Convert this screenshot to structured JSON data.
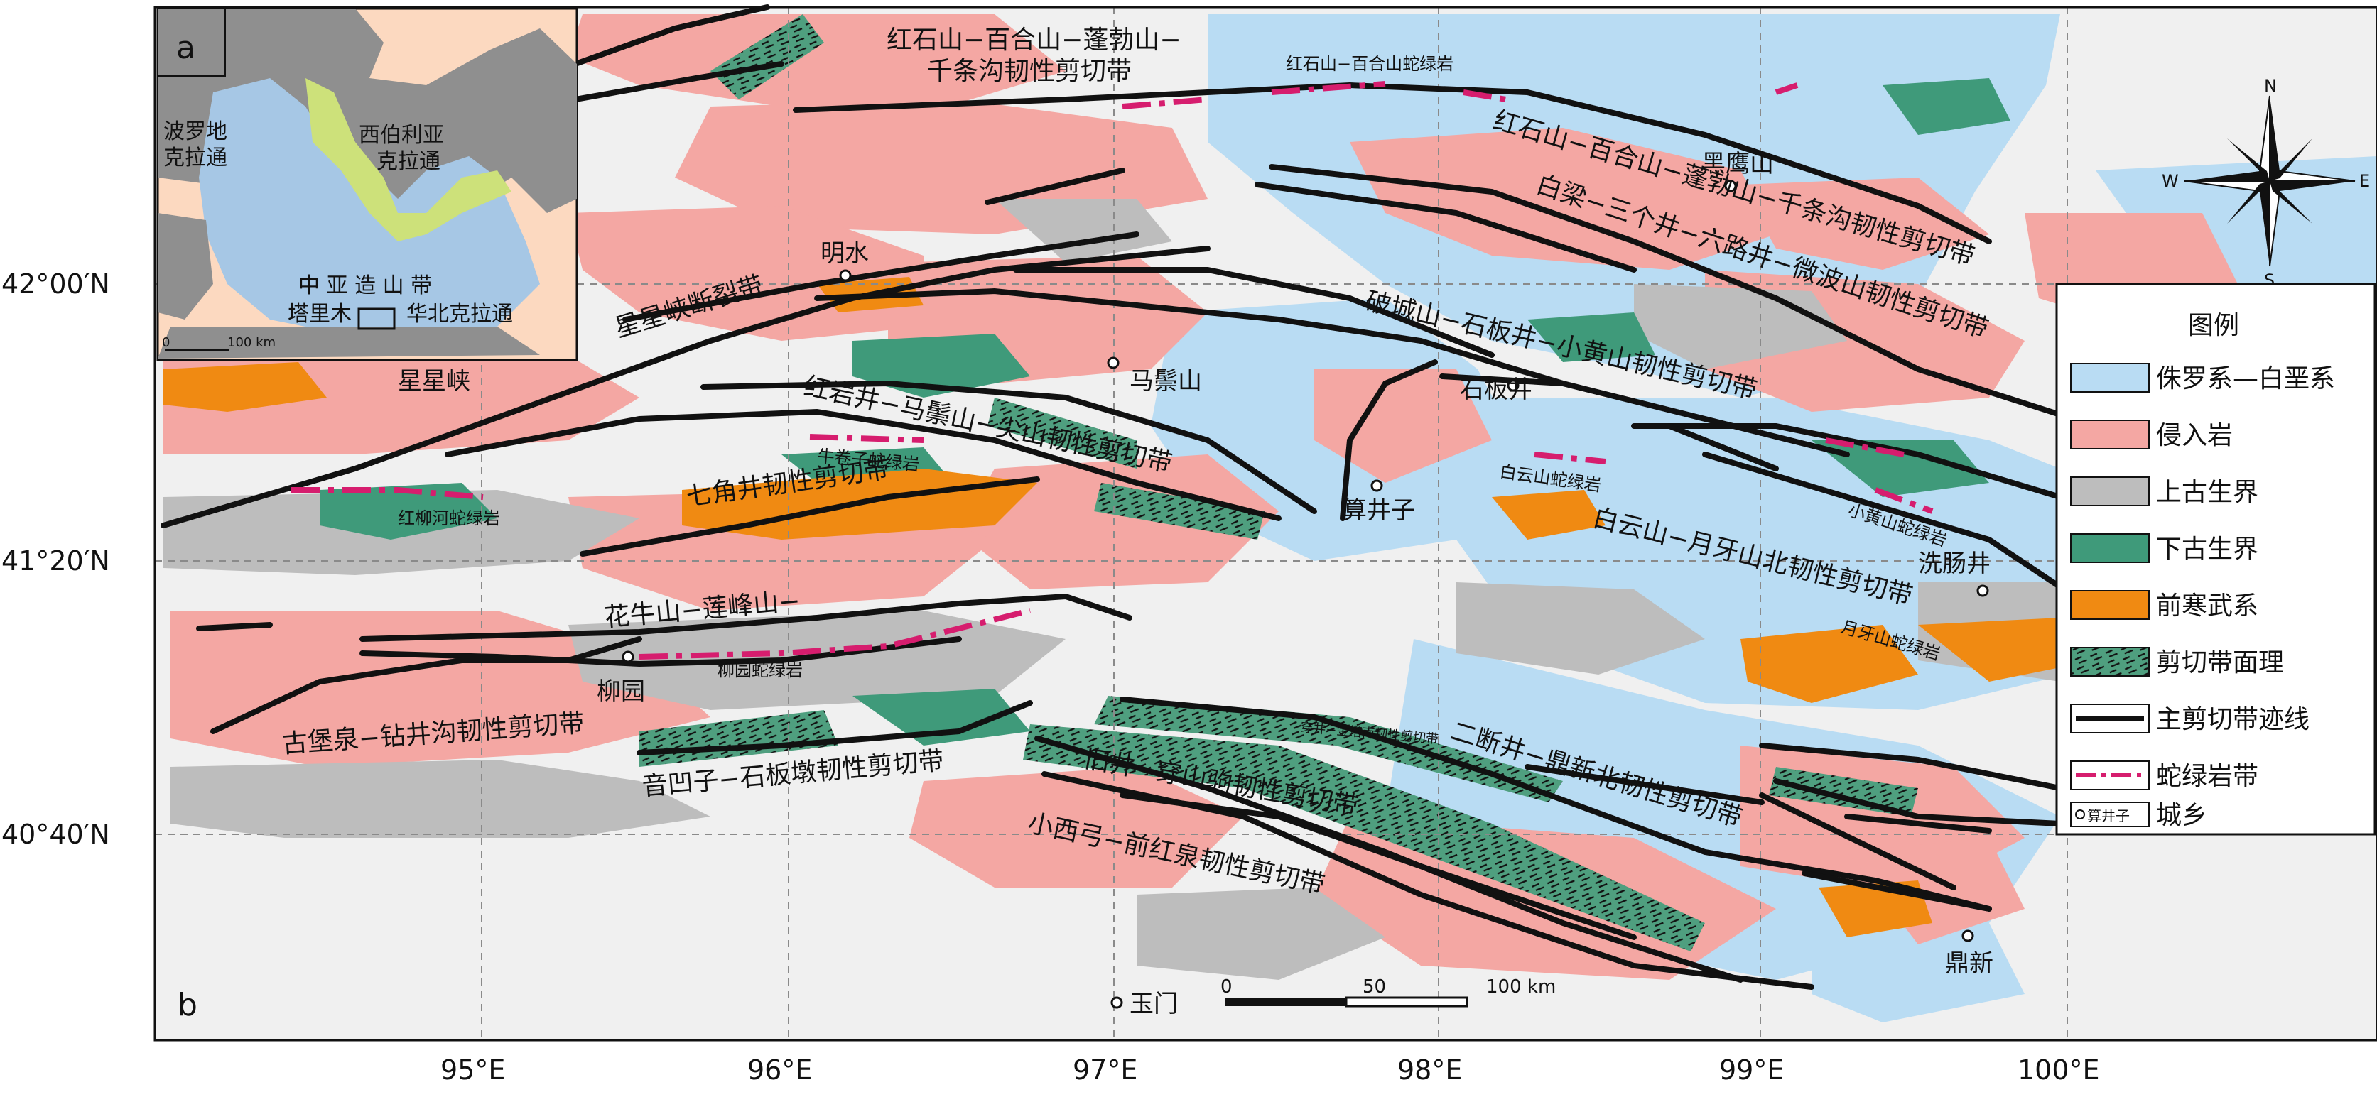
{
  "map": {
    "panel_label": "b",
    "axes": {
      "lon_labels": [
        "95°E",
        "96°E",
        "97°E",
        "98°E",
        "99°E",
        "100°E"
      ],
      "lat_labels": [
        "42°00′N",
        "41°20′N",
        "40°40′N"
      ]
    },
    "shear_zones": [
      "红石山−百合山−蓬勃山−",
      "千条沟韧性剪切带",
      "红石山−百合山−蓬勃山−千条沟韧性剪切带",
      "白梁−三个井−六路井−微波山韧性剪切带",
      "破城山−石板井−小黄山韧性剪切带",
      "红岩井−马鬃山−尖山韧性剪切带",
      "七角井韧性剪切带",
      "白云山−月牙山北韧性剪切带",
      "花牛山−莲峰山−",
      "古堡泉−钻井沟韧性剪切带",
      "音凹子−石板墩韧性剪切带",
      "二断井−鼎新北韧性剪切带",
      "旧井−穿山驹韧性剪切带",
      "小西弓−前红泉韧性剪切带",
      "星星峡断裂带"
    ],
    "ophiolites": [
      "红石山−百合山蛇绿岩",
      "牛卷子蛇绿岩",
      "红柳河蛇绿岩",
      "白云山蛇绿岩",
      "小黄山蛇绿岩",
      "月牙山蛇绿岩",
      "柳园蛇绿岩",
      "穿井−金塔南韧性剪切带"
    ],
    "towns": [
      "黑鹰山",
      "明水",
      "马鬃山",
      "石板井",
      "算井子",
      "星星峡",
      "洗肠井",
      "柳园",
      "玉门",
      "鼎新"
    ],
    "scale_bar": {
      "ticks": [
        "0",
        "50",
        "100 km"
      ]
    },
    "north_arrow": {
      "n": "N",
      "s": "S",
      "e": "E",
      "w": "W"
    }
  },
  "inset": {
    "panel_label": "a",
    "labels": [
      "波罗地",
      "克拉通",
      "西伯利亚",
      "克拉通",
      "中 亚 造 山 带",
      "塔里木",
      "华北克拉通"
    ],
    "scale": [
      "0",
      "100 km"
    ]
  },
  "legend": {
    "title": "图例",
    "items": [
      {
        "label": "侏罗系—白垩系",
        "color": "#b9dcf3"
      },
      {
        "label": "侵入岩",
        "color": "#f4a7a3"
      },
      {
        "label": "上古生界",
        "color": "#bdbdbd"
      },
      {
        "label": "下古生界",
        "color": "#3f9a7a"
      },
      {
        "label": "前寒武系",
        "color": "#f08a12"
      },
      {
        "label": "剪切带面理",
        "color": "#222222"
      },
      {
        "label": "主剪切带迹线",
        "color": "#111111"
      },
      {
        "label": "蛇绿岩带",
        "color": "#d61d6e"
      },
      {
        "label": "城乡",
        "color": "#ffffff"
      }
    ],
    "town_sample": "算井子"
  }
}
